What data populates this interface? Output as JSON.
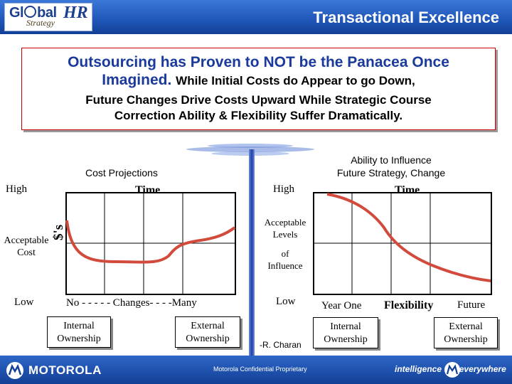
{
  "header": {
    "title": "Transactional Excellence",
    "logo_left": "Gl",
    "logo_mid": "bal",
    "logo_hr": "HR",
    "logo_sub": "Strategy"
  },
  "callout": {
    "line1": "Outsourcing has Proven to NOT be the Panacea Once",
    "line2_big": "Imagined.",
    "line2_small": "While Initial Costs do Appear to go Down,",
    "line3": "Future Changes Drive Costs Upward While Strategic Course",
    "line4": "Correction Ability & Flexibility Suffer Dramatically."
  },
  "left_chart": {
    "title": "Cost Projections",
    "x_axis_title": "Time",
    "y_high": "High",
    "y_acceptable_1": "Acceptable",
    "y_acceptable_2": "Cost",
    "y_low": "Low",
    "y_unit": "$'s",
    "x_caption": "No - - - - - Changes- - - -Many",
    "left_label_1": "Internal",
    "left_label_2": "Ownership",
    "right_label_1": "External",
    "right_label_2": "Ownership"
  },
  "right_chart": {
    "title_1": "Ability to Influence",
    "title_2": "Future Strategy, Change",
    "x_axis_title": "Time",
    "y_high": "High",
    "y_acc_1": "Acceptable",
    "y_acc_2": "Levels",
    "y_acc_3": "of",
    "y_acc_4": "Influence",
    "y_low": "Low",
    "x_left": "Year One",
    "x_mid": "Flexibility",
    "x_right": "Future",
    "left_label_1": "Internal",
    "left_label_2": "Ownership",
    "right_label_1": "External",
    "right_label_2": "Ownership",
    "attribution": "-R. Charan"
  },
  "footer": {
    "brand": "MOTOROLA",
    "confidential": "Motorola Confidential Proprietary",
    "tagline_1": "intelligence",
    "tagline_2": "everywhere"
  },
  "colors": {
    "curve": "#d24a3c",
    "header_blue": "#1f56b8",
    "callout_blue": "#1a3a9c"
  }
}
